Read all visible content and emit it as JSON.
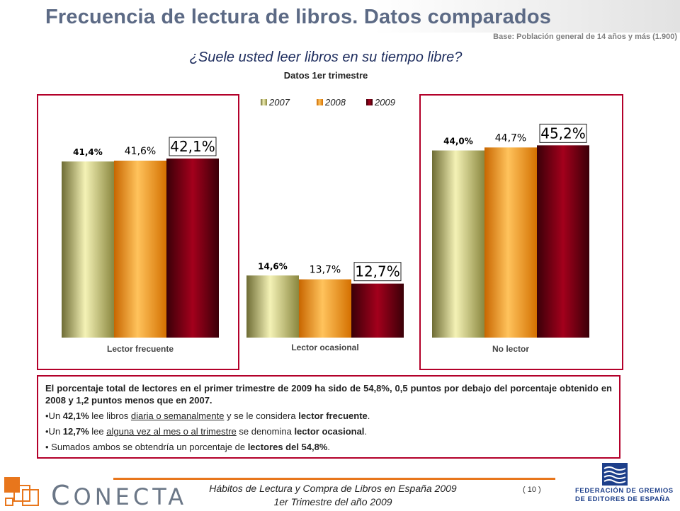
{
  "header": {
    "title": "Frecuencia de lectura de libros. Datos comparados",
    "base_note": "Base: Población general de 14 años y más (1.900)"
  },
  "question": "¿Suele usted leer libros en su tiempo libre?",
  "chart_data": {
    "type": "bar",
    "title": "Datos 1er trimestre",
    "categories": [
      "Lector frecuente",
      "Lector ocasional",
      "No lector"
    ],
    "series": [
      {
        "name": "2007",
        "values": [
          41.4,
          14.6,
          44.0
        ],
        "labels": [
          "41,4%",
          "14,6%",
          "44,0%"
        ],
        "color": "#b5b25a"
      },
      {
        "name": "2008",
        "values": [
          41.6,
          13.7,
          44.7
        ],
        "labels": [
          "41,6%",
          "13,7%",
          "44,7%"
        ],
        "color": "#f08a00"
      },
      {
        "name": "2009",
        "values": [
          42.1,
          12.7,
          45.2
        ],
        "labels": [
          "42,1%",
          "12,7%",
          "45,2%"
        ],
        "color": "#7a0010"
      }
    ],
    "highlighted_series": "2009",
    "legend_position": "top-center",
    "ylim": [
      0,
      50
    ],
    "grid": false
  },
  "summary": {
    "lead": "El porcentaje total de lectores en el primer trimestre de 2009 ha sido de 54,8%, 0,5 puntos por debajo del porcentaje obtenido en 2008 y 1,2 puntos menos que en 2007.",
    "item1": {
      "pre": "•Un ",
      "value": "42,1%",
      "mid": " lee libros ",
      "underlined": "diaria o semanalmente",
      "post": " y se le considera ",
      "term": "lector frecuente",
      "end": "."
    },
    "item2": {
      "pre": "•Un ",
      "value": "12,7%",
      "mid": " lee ",
      "underlined": "alguna vez al mes o al trimestre",
      "post": " se denomina ",
      "term": "lector ocasional",
      "end": "."
    },
    "item3": {
      "pre": "• Sumados ambos se obtendría un porcentaje de ",
      "term": "lectores del 54,8%",
      "end": "."
    }
  },
  "footer": {
    "line1": "Hábitos de Lectura y Compra de Libros en España 2009",
    "line2": "1er Trimestre del año 2009",
    "page": "( 10 )",
    "conecta_initial": "C",
    "conecta_rest": "ONECTA",
    "federation_line1": "FEDERACIÓN DE GREMIOS",
    "federation_line2": "DE EDITORES DE ESPAÑA"
  },
  "colors": {
    "title": "#5c6a85",
    "panel_border": "#b3002a",
    "footer_accent": "#e8761c",
    "federation_blue": "#1d3f8a"
  }
}
